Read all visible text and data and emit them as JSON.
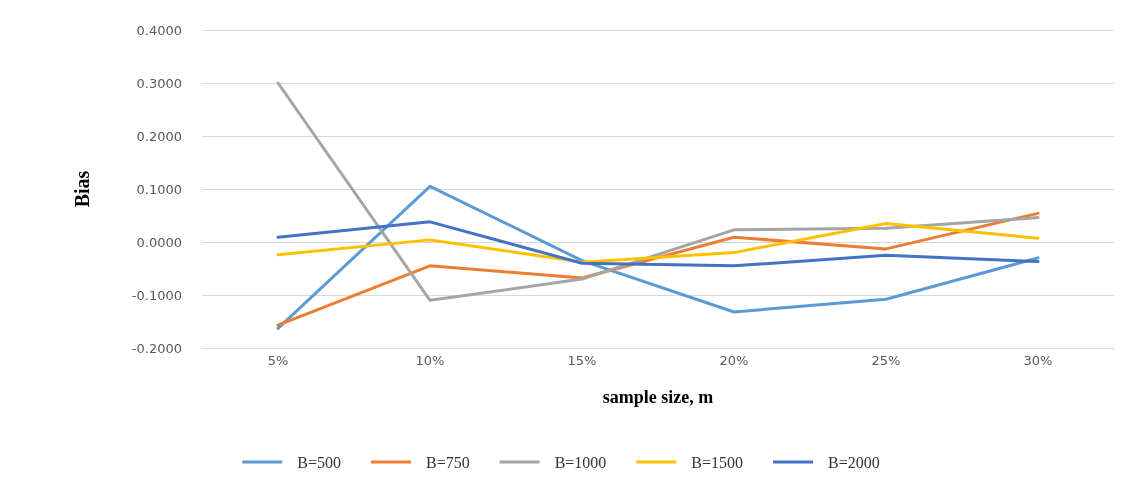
{
  "chart_data": {
    "type": "line",
    "xlabel": "sample size, m",
    "ylabel": "Bias",
    "categories": [
      "5%",
      "10%",
      "15%",
      "20%",
      "25%",
      "30%"
    ],
    "series": [
      {
        "name": "B=500",
        "color": "#5b9bd5",
        "values": [
          -0.163,
          0.105,
          -0.035,
          -0.132,
          -0.108,
          -0.03
        ]
      },
      {
        "name": "B=750",
        "color": "#ed7d31",
        "values": [
          -0.157,
          -0.045,
          -0.068,
          0.009,
          -0.013,
          0.054
        ]
      },
      {
        "name": "B=1000",
        "color": "#a5a5a5",
        "values": [
          0.3,
          -0.11,
          -0.07,
          0.023,
          0.026,
          0.046
        ]
      },
      {
        "name": "B=1500",
        "color": "#ffc000",
        "values": [
          -0.024,
          0.004,
          -0.038,
          -0.02,
          0.035,
          0.007
        ]
      },
      {
        "name": "B=2000",
        "color": "#4472c4",
        "values": [
          0.009,
          0.038,
          -0.04,
          -0.045,
          -0.025,
          -0.037
        ]
      }
    ],
    "ylim": [
      -0.2,
      0.4
    ],
    "yticks": [
      {
        "value": -0.2,
        "label": "-0.2000"
      },
      {
        "value": -0.1,
        "label": "-0.1000"
      },
      {
        "value": 0,
        "label": "0.0000"
      },
      {
        "value": 0.1,
        "label": "0.1000"
      },
      {
        "value": 0.2,
        "label": "0.2000"
      },
      {
        "value": 0.3,
        "label": "0.3000"
      },
      {
        "value": 0.4,
        "label": "0.4000"
      }
    ],
    "grid": "y",
    "legend": "bottom",
    "marker": "none",
    "line_style": "solid"
  }
}
